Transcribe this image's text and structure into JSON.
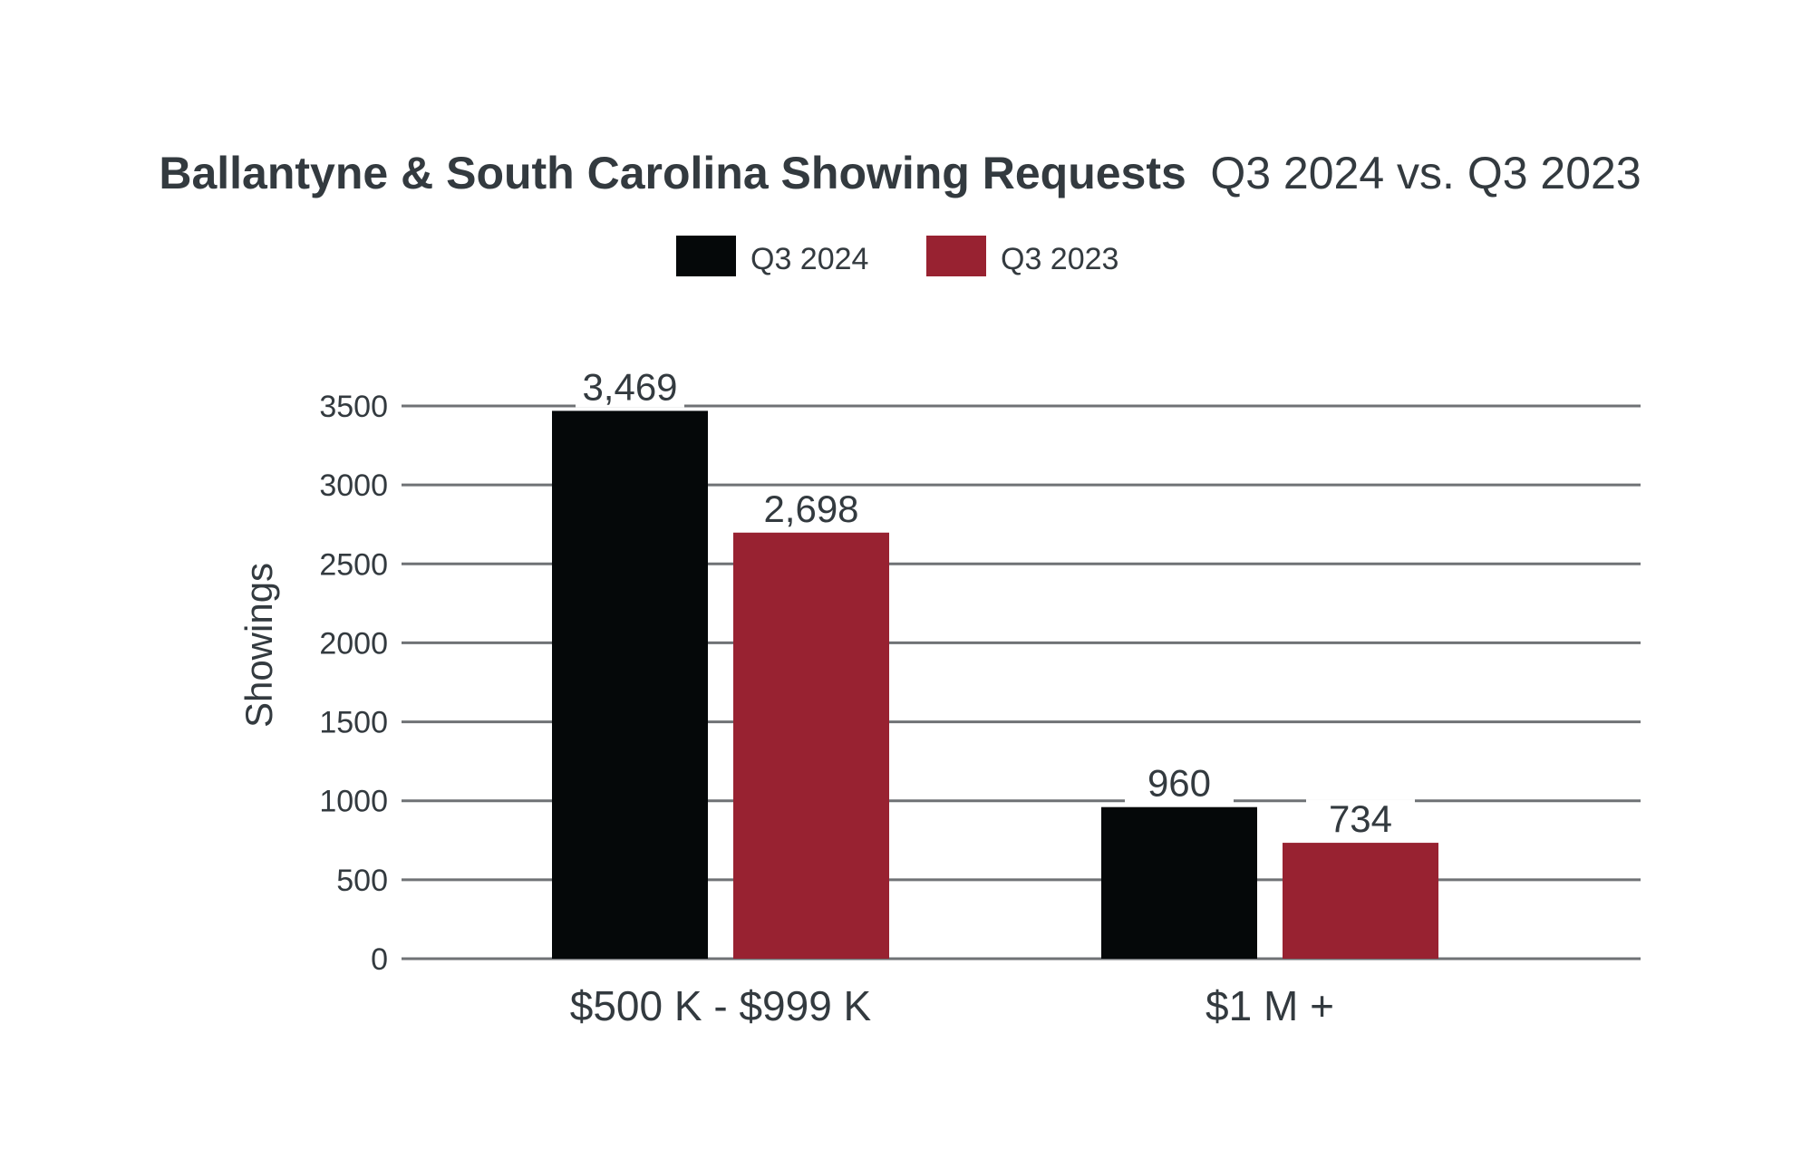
{
  "chart_data": {
    "type": "bar",
    "title": {
      "bold": "Ballantyne & South Carolina Showing Requests",
      "light": "Q3 2024 vs. Q3 2023"
    },
    "xlabel": "",
    "ylabel": "Showings",
    "ylim": [
      0,
      3500
    ],
    "yticks": [
      "0",
      "500",
      "1000",
      "1500",
      "2000",
      "2500",
      "3000",
      "3500"
    ],
    "categories": [
      "$500 K - $999 K",
      "$1 M +"
    ],
    "series": [
      {
        "name": "Q3 2024",
        "color": "#050809",
        "values": [
          3469,
          960
        ],
        "labels": [
          "3,469",
          "960"
        ]
      },
      {
        "name": "Q3 2023",
        "color": "#982231",
        "values": [
          2698,
          734
        ],
        "labels": [
          "2,698",
          "734"
        ]
      }
    ],
    "grid": true,
    "legend": "top-center"
  }
}
